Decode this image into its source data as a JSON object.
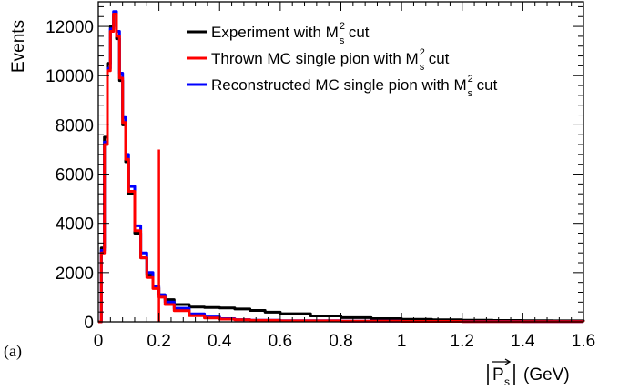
{
  "panel_label": "(a)",
  "chart_data": {
    "type": "line",
    "xlabel": "(GeV)",
    "xlabel_symbol": "P",
    "xlabel_symbol_sub": "s",
    "ylabel": "Events",
    "xlim": [
      0,
      1.6
    ],
    "ylim": [
      0,
      13000
    ],
    "x_ticks": [
      0,
      0.2,
      0.4,
      0.6,
      0.8,
      1,
      1.2,
      1.4,
      1.6
    ],
    "x_tick_labels": [
      "0",
      "0.2",
      "0.4",
      "0.6",
      "0.8",
      "1",
      "1.2",
      "1.4",
      "1.6"
    ],
    "y_ticks": [
      0,
      2000,
      4000,
      6000,
      8000,
      10000,
      12000
    ],
    "y_tick_labels": [
      "0",
      "2000",
      "4000",
      "6000",
      "8000",
      "10000",
      "12000"
    ],
    "grid": false,
    "legend_position": "top-right",
    "colors": {
      "experiment": "#000000",
      "thrown": "#ff0000",
      "reconstructed": "#0000ff"
    },
    "series": [
      {
        "name": "Experiment with M cut",
        "legend_parts": {
          "text": "Experiment with M",
          "sup": "2",
          "sub": "s",
          "after": "cut"
        },
        "color": "#000000",
        "x": [
          0,
          0.01,
          0.02,
          0.03,
          0.04,
          0.05,
          0.06,
          0.07,
          0.08,
          0.09,
          0.1,
          0.12,
          0.14,
          0.16,
          0.18,
          0.2,
          0.22,
          0.25,
          0.3,
          0.35,
          0.4,
          0.45,
          0.5,
          0.55,
          0.6,
          0.7,
          0.8,
          0.9,
          1.0,
          1.1,
          1.2,
          1.3,
          1.4,
          1.5,
          1.6
        ],
        "values": [
          0,
          3000,
          7500,
          10500,
          12000,
          12500,
          11500,
          9800,
          8000,
          6500,
          5200,
          3600,
          2600,
          1900,
          1400,
          1100,
          900,
          700,
          600,
          580,
          560,
          520,
          460,
          390,
          330,
          240,
          170,
          130,
          100,
          80,
          65,
          55,
          45,
          40,
          35
        ]
      },
      {
        "name": "Thrown MC single pion with M cut",
        "legend_parts": {
          "text": "Thrown MC single pion with M",
          "sup": "2",
          "sub": "s",
          "after": "cut"
        },
        "color": "#ff0000",
        "x": [
          0,
          0.01,
          0.02,
          0.03,
          0.04,
          0.05,
          0.06,
          0.07,
          0.08,
          0.09,
          0.1,
          0.12,
          0.14,
          0.16,
          0.18,
          0.2,
          0.22,
          0.25,
          0.3,
          0.35,
          0.4,
          0.45,
          0.5,
          0.6,
          0.8,
          1.0,
          1.2,
          1.4,
          1.6
        ],
        "values": [
          0,
          2800,
          7200,
          10200,
          11800,
          12500,
          11600,
          9900,
          8100,
          6600,
          5300,
          3700,
          2600,
          1800,
          1350,
          1000,
          700,
          450,
          250,
          160,
          110,
          80,
          60,
          40,
          25,
          18,
          12,
          8,
          5
        ]
      },
      {
        "name": "Reconstructed MC single pion with M cut",
        "legend_parts": {
          "text": "Reconstructed MC single pion with M",
          "sup": "2",
          "sub": "s",
          "after": "cut"
        },
        "color": "#0000ff",
        "x": [
          0,
          0.01,
          0.02,
          0.03,
          0.04,
          0.05,
          0.06,
          0.07,
          0.08,
          0.09,
          0.1,
          0.12,
          0.14,
          0.16,
          0.18,
          0.2,
          0.22,
          0.25,
          0.3,
          0.35,
          0.4,
          0.45,
          0.5,
          0.6,
          0.8,
          1.0,
          1.2,
          1.4,
          1.6
        ],
        "values": [
          0,
          2900,
          7300,
          10300,
          11900,
          12600,
          11800,
          10100,
          8300,
          6800,
          5500,
          3900,
          2800,
          2000,
          1450,
          1100,
          800,
          550,
          320,
          200,
          130,
          90,
          65,
          45,
          28,
          20,
          14,
          9,
          6
        ]
      }
    ],
    "marker_line": {
      "x": 0.2,
      "y_top": 7000,
      "color": "#ff0000"
    }
  }
}
